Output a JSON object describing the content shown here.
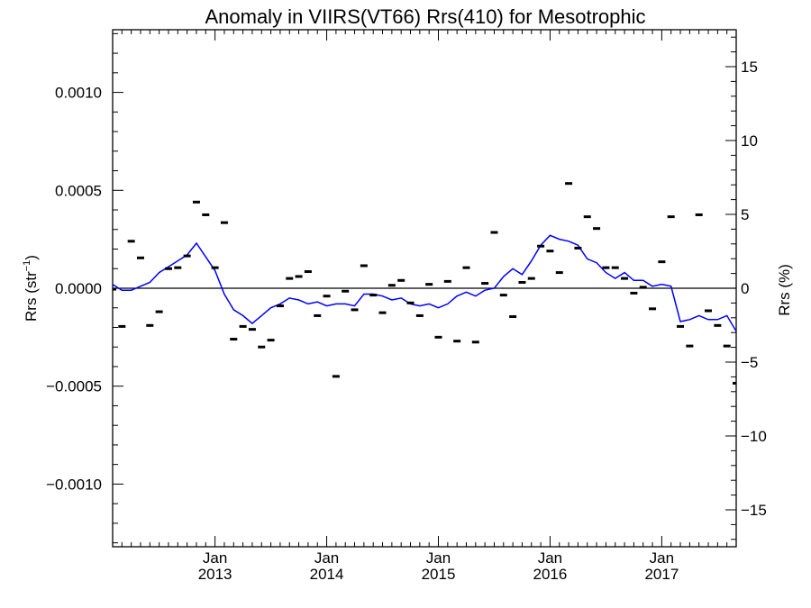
{
  "chart_data": {
    "type": "scatter",
    "title": "Anomaly in VIIRS(VT66) Rrs(410) for Mesotrophic",
    "ylabel_left": {
      "base": "Rrs (str",
      "superscript": "−1",
      "close": ")"
    },
    "ylabel_right": "Rrs (%)",
    "xlim": [
      "2012-02-01",
      "2017-09-01"
    ],
    "ylim_left": [
      -0.00132,
      0.00132
    ],
    "ylim_right": [
      -17.5,
      17.5
    ],
    "x_ticks": [
      {
        "date": "2013-01-01",
        "month": "Jan",
        "year": "2013"
      },
      {
        "date": "2014-01-01",
        "month": "Jan",
        "year": "2014"
      },
      {
        "date": "2015-01-01",
        "month": "Jan",
        "year": "2015"
      },
      {
        "date": "2016-01-01",
        "month": "Jan",
        "year": "2016"
      },
      {
        "date": "2017-01-01",
        "month": "Jan",
        "year": "2017"
      }
    ],
    "y_ticks_left": [
      {
        "value": 0.001,
        "label": "0.0010"
      },
      {
        "value": 0.0005,
        "label": "0.0005"
      },
      {
        "value": 0.0,
        "label": "0.0000"
      },
      {
        "value": -0.0005,
        "label": "−0.0005"
      },
      {
        "value": -0.001,
        "label": "−0.0010"
      }
    ],
    "y_ticks_right": [
      {
        "value": 15,
        "label": "15"
      },
      {
        "value": 10,
        "label": "10"
      },
      {
        "value": 5,
        "label": "5"
      },
      {
        "value": 0,
        "label": "0"
      },
      {
        "value": -5,
        "label": "−5"
      },
      {
        "value": -10,
        "label": "−10"
      },
      {
        "value": -15,
        "label": "−15"
      }
    ],
    "zero_line": 0,
    "series": [
      {
        "style": "markers",
        "color": "#000000",
        "x": [
          "2012-02-01",
          "2012-03-01",
          "2012-04-01",
          "2012-05-01",
          "2012-06-01",
          "2012-07-01",
          "2012-08-01",
          "2012-09-01",
          "2012-10-01",
          "2012-11-01",
          "2012-12-01",
          "2013-01-01",
          "2013-02-01",
          "2013-03-01",
          "2013-04-01",
          "2013-05-01",
          "2013-06-01",
          "2013-07-01",
          "2013-08-01",
          "2013-09-01",
          "2013-10-01",
          "2013-11-01",
          "2013-12-01",
          "2014-01-01",
          "2014-02-01",
          "2014-03-01",
          "2014-04-01",
          "2014-05-01",
          "2014-06-01",
          "2014-07-01",
          "2014-08-01",
          "2014-09-01",
          "2014-10-01",
          "2014-11-01",
          "2014-12-01",
          "2015-01-01",
          "2015-02-01",
          "2015-03-01",
          "2015-04-01",
          "2015-05-01",
          "2015-06-01",
          "2015-07-01",
          "2015-08-01",
          "2015-09-01",
          "2015-10-01",
          "2015-11-01",
          "2015-12-01",
          "2016-01-01",
          "2016-02-01",
          "2016-03-01",
          "2016-04-01",
          "2016-05-01",
          "2016-06-01",
          "2016-07-01",
          "2016-08-01",
          "2016-09-01",
          "2016-10-01",
          "2016-11-01",
          "2016-12-01",
          "2017-01-01",
          "2017-02-01",
          "2017-03-01",
          "2017-04-01",
          "2017-05-01",
          "2017-06-01",
          "2017-07-01",
          "2017-08-01",
          "2017-09-01"
        ],
        "values": [
          -5e-06,
          -0.000195,
          0.00024,
          0.000155,
          -0.00019,
          -0.00012,
          0.0001,
          0.000105,
          0.000165,
          0.00044,
          0.000375,
          0.000105,
          0.000335,
          -0.00026,
          -0.000195,
          -0.00021,
          -0.0003,
          -0.000265,
          -9e-05,
          5e-05,
          6e-05,
          8.5e-05,
          -0.00014,
          -4e-05,
          -0.00045,
          -1.5e-05,
          -0.00011,
          0.000115,
          -3.5e-05,
          -0.000125,
          1.5e-05,
          4e-05,
          -7.5e-05,
          -0.00014,
          2e-05,
          -0.00025,
          3.5e-05,
          -0.00027,
          0.000105,
          -0.000275,
          2.5e-05,
          0.000285,
          -3.5e-05,
          -0.000145,
          3e-05,
          5e-05,
          0.000215,
          0.00019,
          8e-05,
          0.000535,
          0.000205,
          0.000365,
          0.000305,
          0.000105,
          0.000105,
          5e-05,
          -2.5e-05,
          5e-06,
          -0.000105,
          0.000135,
          0.000365,
          -0.000195,
          -0.000295,
          0.000375,
          -0.000115,
          -0.00019,
          -0.000295,
          -0.000485
        ]
      },
      {
        "style": "line",
        "color": "#0000ff",
        "x": [
          "2012-02-01",
          "2012-03-01",
          "2012-04-01",
          "2012-05-01",
          "2012-06-01",
          "2012-07-01",
          "2012-08-01",
          "2012-09-01",
          "2012-10-01",
          "2012-11-01",
          "2012-12-01",
          "2013-01-01",
          "2013-02-01",
          "2013-03-01",
          "2013-04-01",
          "2013-05-01",
          "2013-06-01",
          "2013-07-01",
          "2013-08-01",
          "2013-09-01",
          "2013-10-01",
          "2013-11-01",
          "2013-12-01",
          "2014-01-01",
          "2014-02-01",
          "2014-03-01",
          "2014-04-01",
          "2014-05-01",
          "2014-06-01",
          "2014-07-01",
          "2014-08-01",
          "2014-09-01",
          "2014-10-01",
          "2014-11-01",
          "2014-12-01",
          "2015-01-01",
          "2015-02-01",
          "2015-03-01",
          "2015-04-01",
          "2015-05-01",
          "2015-06-01",
          "2015-07-01",
          "2015-08-01",
          "2015-09-01",
          "2015-10-01",
          "2015-11-01",
          "2015-12-01",
          "2016-01-01",
          "2016-02-01",
          "2016-03-01",
          "2016-04-01",
          "2016-05-01",
          "2016-06-01",
          "2016-07-01",
          "2016-08-01",
          "2016-09-01",
          "2016-10-01",
          "2016-11-01",
          "2016-12-01",
          "2017-01-01",
          "2017-02-01",
          "2017-03-01",
          "2017-04-01",
          "2017-05-01",
          "2017-06-01",
          "2017-07-01",
          "2017-08-01",
          "2017-09-01"
        ],
        "values": [
          2e-05,
          -1e-05,
          -1e-05,
          1e-05,
          3e-05,
          8e-05,
          0.00011,
          0.00014,
          0.00017,
          0.00023,
          0.00016,
          9e-05,
          -3e-05,
          -0.00011,
          -0.00014,
          -0.00018,
          -0.00014,
          -0.0001,
          -8e-05,
          -5e-05,
          -6e-05,
          -8e-05,
          -7e-05,
          -9e-05,
          -8e-05,
          -8e-05,
          -9e-05,
          -3e-05,
          -3e-05,
          -4e-05,
          -6e-05,
          -5e-05,
          -8e-05,
          -9e-05,
          -8e-05,
          -0.0001,
          -8e-05,
          -4e-05,
          -2e-05,
          -4e-05,
          -1e-05,
          0.0,
          6e-05,
          0.0001,
          7e-05,
          0.00014,
          0.00022,
          0.00027,
          0.00025,
          0.00024,
          0.00022,
          0.00015,
          0.00013,
          8e-05,
          5e-05,
          8e-05,
          4e-05,
          4e-05,
          1e-05,
          2e-05,
          1e-05,
          -0.00017,
          -0.00016,
          -0.00014,
          -0.00016,
          -0.00016,
          -0.00014,
          -0.00022
        ]
      }
    ]
  }
}
